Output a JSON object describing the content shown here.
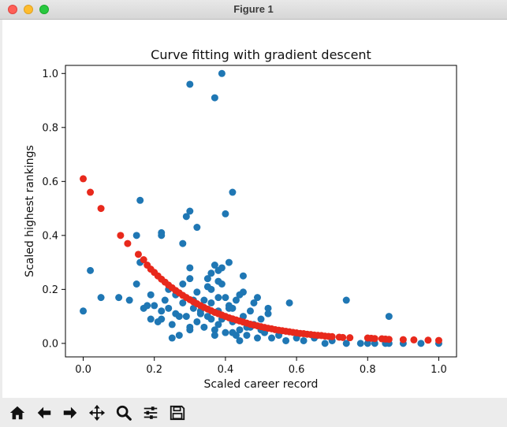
{
  "window": {
    "title": "Figure 1"
  },
  "toolbar": {
    "buttons": [
      {
        "name": "home-button",
        "icon": "home-icon"
      },
      {
        "name": "back-button",
        "icon": "arrow-left-icon"
      },
      {
        "name": "forward-button",
        "icon": "arrow-right-icon"
      },
      {
        "name": "pan-button",
        "icon": "move-icon"
      },
      {
        "name": "zoom-button",
        "icon": "magnifier-icon"
      },
      {
        "name": "configure-subplots-button",
        "icon": "sliders-icon"
      },
      {
        "name": "save-button",
        "icon": "floppy-disk-icon"
      }
    ]
  },
  "chart_data": {
    "type": "scatter",
    "title": "Curve fitting with gradient descent",
    "xlabel": "Scaled career record",
    "ylabel": "Scaled highest rankings",
    "xlim": [
      -0.05,
      1.05
    ],
    "ylim": [
      -0.05,
      1.03
    ],
    "xticks": [
      "0.0",
      "0.2",
      "0.4",
      "0.6",
      "0.8",
      "1.0"
    ],
    "xtick_values": [
      0.0,
      0.2,
      0.4,
      0.6,
      0.8,
      1.0
    ],
    "yticks": [
      "0.0",
      "0.2",
      "0.4",
      "0.6",
      "0.8",
      "1.0"
    ],
    "ytick_values": [
      0.0,
      0.2,
      0.4,
      0.6,
      0.8,
      1.0
    ],
    "grid": false,
    "series": [
      {
        "color": "#1f77b4",
        "x": [
          0.0,
          0.02,
          0.05,
          0.1,
          0.13,
          0.15,
          0.16,
          0.18,
          0.17,
          0.19,
          0.2,
          0.21,
          0.22,
          0.23,
          0.24,
          0.25,
          0.26,
          0.27,
          0.28,
          0.29,
          0.3,
          0.31,
          0.32,
          0.33,
          0.34,
          0.35,
          0.36,
          0.37,
          0.38,
          0.39,
          0.4,
          0.41,
          0.42,
          0.43,
          0.44,
          0.45,
          0.46,
          0.47,
          0.48,
          0.49,
          0.5,
          0.51,
          0.52,
          0.53,
          0.55,
          0.57,
          0.6,
          0.62,
          0.65,
          0.68,
          0.7,
          0.74,
          0.78,
          0.8,
          0.82,
          0.85,
          0.86,
          0.9,
          0.95,
          1.0,
          0.24,
          0.26,
          0.28,
          0.3,
          0.32,
          0.34,
          0.36,
          0.38,
          0.4,
          0.42,
          0.44,
          0.46,
          0.48,
          0.5,
          0.52,
          0.35,
          0.37,
          0.39,
          0.41,
          0.43,
          0.45,
          0.47,
          0.49,
          0.31,
          0.33,
          0.36,
          0.38,
          0.42,
          0.44,
          0.3,
          0.38,
          0.37,
          0.3,
          0.41,
          0.39,
          0.16,
          0.29,
          0.3,
          0.32,
          0.22,
          0.22,
          0.28,
          0.15,
          0.35,
          0.36,
          0.38,
          0.42,
          0.4,
          0.45,
          0.58,
          0.74,
          0.86,
          0.22,
          0.27,
          0.33,
          0.25,
          0.19
        ],
        "y": [
          0.12,
          0.27,
          0.17,
          0.17,
          0.16,
          0.4,
          0.3,
          0.14,
          0.13,
          0.18,
          0.14,
          0.08,
          0.12,
          0.16,
          0.13,
          0.07,
          0.11,
          0.03,
          0.15,
          0.1,
          0.05,
          0.13,
          0.08,
          0.12,
          0.06,
          0.1,
          0.15,
          0.05,
          0.12,
          0.09,
          0.04,
          0.13,
          0.08,
          0.16,
          0.05,
          0.1,
          0.03,
          0.12,
          0.07,
          0.02,
          0.09,
          0.04,
          0.13,
          0.02,
          0.03,
          0.01,
          0.02,
          0.01,
          0.02,
          0.0,
          0.01,
          0.0,
          0.0,
          0.0,
          0.0,
          0.0,
          0.0,
          0.0,
          0.0,
          0.0,
          0.2,
          0.18,
          0.22,
          0.06,
          0.19,
          0.16,
          0.2,
          0.07,
          0.17,
          0.04,
          0.18,
          0.06,
          0.15,
          0.05,
          0.11,
          0.21,
          0.03,
          0.22,
          0.14,
          0.03,
          0.19,
          0.06,
          0.17,
          0.16,
          0.11,
          0.09,
          0.17,
          0.13,
          0.01,
          0.24,
          0.27,
          0.29,
          0.28,
          0.3,
          0.28,
          0.53,
          0.47,
          0.49,
          0.43,
          0.41,
          0.4,
          0.37,
          0.22,
          0.24,
          0.26,
          0.23,
          0.56,
          0.48,
          0.25,
          0.15,
          0.16,
          0.1,
          0.09,
          0.1,
          0.11,
          0.02,
          0.09
        ],
        "outliers_x": [
          0.3,
          0.37,
          0.39
        ],
        "outliers_y": [
          0.96,
          0.91,
          1.0
        ]
      },
      {
        "color": "#e8291c",
        "curve": "fitted",
        "x": [
          0.0,
          0.02,
          0.05,
          0.105,
          0.125,
          0.155,
          0.17,
          0.18,
          0.19,
          0.2,
          0.21,
          0.22,
          0.23,
          0.24,
          0.25,
          0.26,
          0.27,
          0.28,
          0.29,
          0.3,
          0.31,
          0.32,
          0.33,
          0.34,
          0.35,
          0.36,
          0.37,
          0.38,
          0.39,
          0.4,
          0.41,
          0.42,
          0.43,
          0.44,
          0.45,
          0.46,
          0.47,
          0.48,
          0.49,
          0.5,
          0.51,
          0.52,
          0.53,
          0.54,
          0.55,
          0.56,
          0.57,
          0.58,
          0.59,
          0.6,
          0.61,
          0.62,
          0.63,
          0.64,
          0.65,
          0.66,
          0.67,
          0.68,
          0.69,
          0.7,
          0.72,
          0.73,
          0.75,
          0.8,
          0.81,
          0.82,
          0.84,
          0.85,
          0.86,
          0.9,
          0.93,
          0.97,
          1.0
        ],
        "y": [
          0.61,
          0.56,
          0.5,
          0.4,
          0.37,
          0.33,
          0.31,
          0.29,
          0.275,
          0.263,
          0.25,
          0.238,
          0.227,
          0.216,
          0.206,
          0.196,
          0.187,
          0.178,
          0.17,
          0.162,
          0.154,
          0.147,
          0.14,
          0.133,
          0.127,
          0.121,
          0.115,
          0.11,
          0.105,
          0.1,
          0.095,
          0.091,
          0.087,
          0.083,
          0.079,
          0.075,
          0.071,
          0.068,
          0.065,
          0.062,
          0.059,
          0.056,
          0.054,
          0.051,
          0.049,
          0.047,
          0.045,
          0.043,
          0.041,
          0.039,
          0.037,
          0.036,
          0.034,
          0.033,
          0.031,
          0.03,
          0.029,
          0.027,
          0.026,
          0.025,
          0.023,
          0.022,
          0.021,
          0.02,
          0.019,
          0.018,
          0.017,
          0.016,
          0.015,
          0.014,
          0.013,
          0.012,
          0.011
        ]
      }
    ]
  }
}
